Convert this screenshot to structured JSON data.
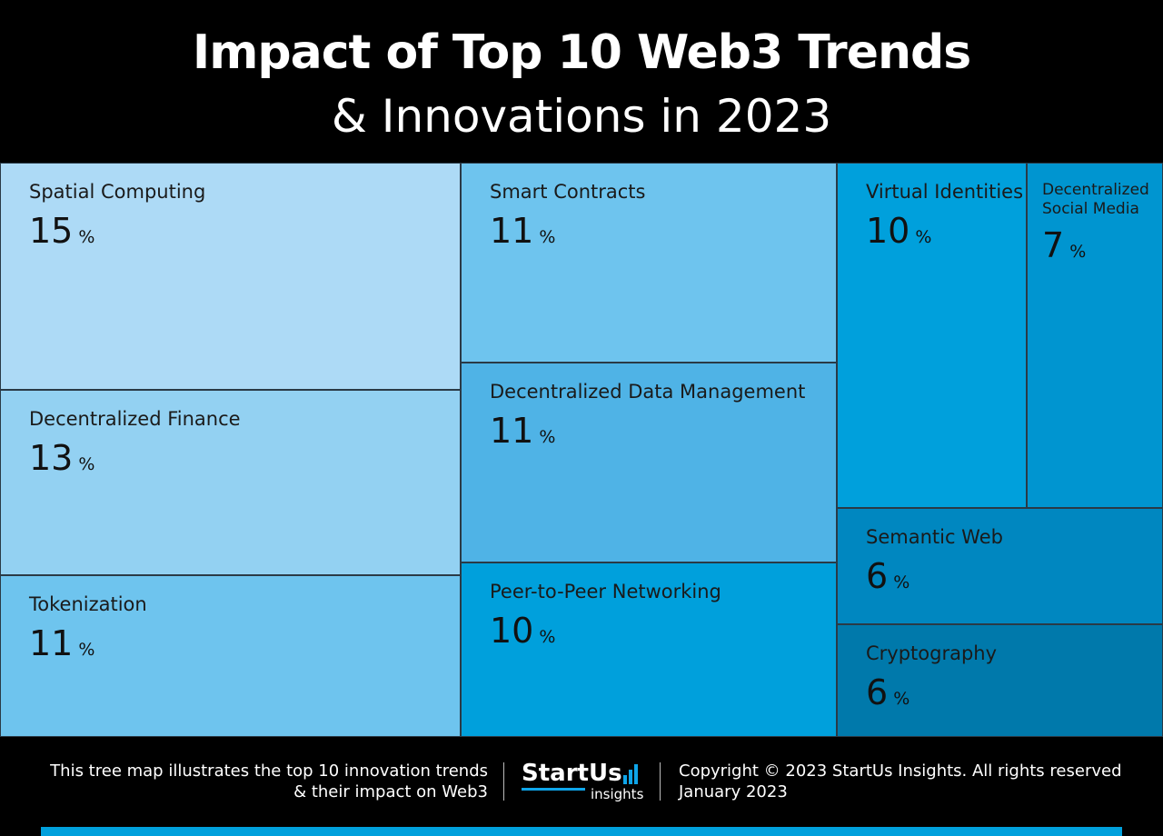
{
  "header": {
    "title": "Impact of Top 10 Web3 Trends",
    "subtitle": "& Innovations in 2023"
  },
  "chart_data": {
    "type": "treemap",
    "title": "Impact of Top 10 Web3 Trends & Innovations in 2023",
    "unit": "%",
    "items": [
      {
        "name": "Spatial Computing",
        "value": 15,
        "color": "#addaf6"
      },
      {
        "name": "Decentralized Finance",
        "value": 13,
        "color": "#93d1f2"
      },
      {
        "name": "Tokenization",
        "value": 11,
        "color": "#6ec4ee"
      },
      {
        "name": "Smart Contracts",
        "value": 11,
        "color": "#6ec4ee"
      },
      {
        "name": "Decentralized Data Management",
        "value": 11,
        "color": "#4fb3e6"
      },
      {
        "name": "Peer-to-Peer Networking",
        "value": 10,
        "color": "#00a0dc"
      },
      {
        "name": "Virtual Identities",
        "value": 10,
        "color": "#00a0dc"
      },
      {
        "name": "Decentralized Social Media",
        "value": 7,
        "color": "#0095d0"
      },
      {
        "name": "Semantic Web",
        "value": 6,
        "color": "#0087c0"
      },
      {
        "name": "Cryptography",
        "value": 6,
        "color": "#0079ab"
      }
    ]
  },
  "footer": {
    "description_line1": "This tree map illustrates the top 10 innovation trends",
    "description_line2": "& their impact on Web3",
    "logo_main": "StartUs",
    "logo_sub": "insights",
    "copyright": "Copyright © 2023 StartUs Insights. All rights reserved",
    "date": "January 2023",
    "accent_color": "#00a0dc"
  }
}
